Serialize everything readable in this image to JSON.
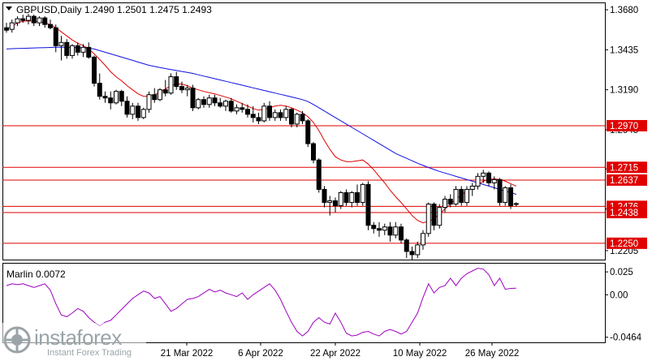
{
  "header": {
    "symbol_line": "GBPUSD,Daily  1.2490 1.2501 1.2475 1.2493"
  },
  "indicator": {
    "label": "Marlin 0.0072",
    "levels": [
      "0.025",
      "0.00",
      "-0.0464"
    ]
  },
  "watermark": {
    "brand": "instaforex",
    "tagline": "Instant Forex Trading"
  },
  "x_axis_labels": [
    "21 Mar 2022",
    "6 Apr 2022",
    "22 Apr 2022",
    "10 May 2022",
    "26 May 2022"
  ],
  "colors": {
    "bull": "#ffffff",
    "bear": "#000000",
    "ma_fast": "#e00000",
    "ma_slow": "#1010e0",
    "level_line": "#e00000",
    "oscillator": "#a000c0",
    "label_box": "#e00000"
  },
  "chart_data": [
    {
      "type": "candlestick",
      "title": "GBPUSD,Daily",
      "ohlc_last": {
        "open": 1.249,
        "high": 1.2501,
        "low": 1.2475,
        "close": 1.2493
      },
      "y_ticks": [
        "1.3680",
        "1.3435",
        "1.3190",
        "1.2945",
        "1.2705",
        "1.2460",
        "1.2205"
      ],
      "ylim": [
        1.215,
        1.372
      ],
      "levels": [
        {
          "value": 1.297,
          "label": "1.2970"
        },
        {
          "value": 1.2715,
          "label": "1.2715"
        },
        {
          "value": 1.2637,
          "label": "1.2637"
        },
        {
          "value": 1.2476,
          "label": "1.2476"
        },
        {
          "value": 1.2438,
          "label": "1.2438"
        },
        {
          "value": 1.225,
          "label": "1.2250"
        }
      ],
      "candles": [
        [
          1.357,
          1.36,
          1.354,
          1.3555
        ],
        [
          1.356,
          1.362,
          1.354,
          1.36
        ],
        [
          1.36,
          1.364,
          1.358,
          1.3625
        ],
        [
          1.3625,
          1.365,
          1.36,
          1.3615
        ],
        [
          1.3615,
          1.3655,
          1.359,
          1.364
        ],
        [
          1.364,
          1.365,
          1.358,
          1.36
        ],
        [
          1.36,
          1.364,
          1.358,
          1.363
        ],
        [
          1.363,
          1.364,
          1.357,
          1.359
        ],
        [
          1.359,
          1.362,
          1.356,
          1.357
        ],
        [
          1.357,
          1.359,
          1.342,
          1.346
        ],
        [
          1.346,
          1.352,
          1.337,
          1.348
        ],
        [
          1.348,
          1.35,
          1.338,
          1.34
        ],
        [
          1.34,
          1.347,
          1.338,
          1.346
        ],
        [
          1.346,
          1.348,
          1.34,
          1.342
        ],
        [
          1.342,
          1.347,
          1.339,
          1.345
        ],
        [
          1.345,
          1.348,
          1.338,
          1.339
        ],
        [
          1.339,
          1.34,
          1.321,
          1.323
        ],
        [
          1.323,
          1.329,
          1.313,
          1.315
        ],
        [
          1.315,
          1.318,
          1.311,
          1.314
        ],
        [
          1.314,
          1.318,
          1.307,
          1.311
        ],
        [
          1.311,
          1.319,
          1.31,
          1.318
        ],
        [
          1.318,
          1.319,
          1.309,
          1.312
        ],
        [
          1.312,
          1.315,
          1.302,
          1.304
        ],
        [
          1.304,
          1.311,
          1.301,
          1.309
        ],
        [
          1.309,
          1.311,
          1.3,
          1.302
        ],
        [
          1.302,
          1.308,
          1.301,
          1.307
        ],
        [
          1.307,
          1.318,
          1.305,
          1.316
        ],
        [
          1.316,
          1.32,
          1.311,
          1.313
        ],
        [
          1.313,
          1.32,
          1.312,
          1.319
        ],
        [
          1.319,
          1.325,
          1.315,
          1.317
        ],
        [
          1.317,
          1.329,
          1.316,
          1.327
        ],
        [
          1.327,
          1.33,
          1.319,
          1.321
        ],
        [
          1.321,
          1.324,
          1.317,
          1.319
        ],
        [
          1.319,
          1.322,
          1.315,
          1.32
        ],
        [
          1.32,
          1.322,
          1.306,
          1.308
        ],
        [
          1.308,
          1.314,
          1.307,
          1.313
        ],
        [
          1.313,
          1.315,
          1.308,
          1.31
        ],
        [
          1.31,
          1.316,
          1.308,
          1.314
        ],
        [
          1.314,
          1.316,
          1.309,
          1.311
        ],
        [
          1.311,
          1.314,
          1.308,
          1.309
        ],
        [
          1.309,
          1.313,
          1.306,
          1.312
        ],
        [
          1.312,
          1.314,
          1.305,
          1.306
        ],
        [
          1.306,
          1.31,
          1.304,
          1.308
        ],
        [
          1.308,
          1.311,
          1.305,
          1.307
        ],
        [
          1.307,
          1.31,
          1.302,
          1.304
        ],
        [
          1.304,
          1.309,
          1.299,
          1.302
        ],
        [
          1.302,
          1.305,
          1.298,
          1.3
        ],
        [
          1.3,
          1.311,
          1.299,
          1.309
        ],
        [
          1.309,
          1.312,
          1.3,
          1.302
        ],
        [
          1.302,
          1.307,
          1.3,
          1.305
        ],
        [
          1.305,
          1.307,
          1.3,
          1.302
        ],
        [
          1.302,
          1.309,
          1.3,
          1.307
        ],
        [
          1.307,
          1.308,
          1.296,
          1.298
        ],
        [
          1.298,
          1.305,
          1.296,
          1.304
        ],
        [
          1.304,
          1.306,
          1.298,
          1.3
        ],
        [
          1.3,
          1.301,
          1.284,
          1.286
        ],
        [
          1.286,
          1.287,
          1.274,
          1.276
        ],
        [
          1.276,
          1.277,
          1.256,
          1.258
        ],
        [
          1.258,
          1.26,
          1.247,
          1.25
        ],
        [
          1.25,
          1.254,
          1.242,
          1.251
        ],
        [
          1.251,
          1.253,
          1.244,
          1.248
        ],
        [
          1.248,
          1.257,
          1.246,
          1.256
        ],
        [
          1.256,
          1.258,
          1.248,
          1.25
        ],
        [
          1.25,
          1.257,
          1.247,
          1.256
        ],
        [
          1.256,
          1.261,
          1.248,
          1.25
        ],
        [
          1.25,
          1.262,
          1.248,
          1.261
        ],
        [
          1.261,
          1.263,
          1.233,
          1.236
        ],
        [
          1.236,
          1.238,
          1.231,
          1.234
        ],
        [
          1.234,
          1.238,
          1.229,
          1.233
        ],
        [
          1.233,
          1.237,
          1.23,
          1.235
        ],
        [
          1.235,
          1.238,
          1.226,
          1.23
        ],
        [
          1.23,
          1.238,
          1.228,
          1.235
        ],
        [
          1.235,
          1.237,
          1.225,
          1.227
        ],
        [
          1.227,
          1.228,
          1.216,
          1.22
        ],
        [
          1.22,
          1.223,
          1.215,
          1.218
        ],
        [
          1.218,
          1.226,
          1.216,
          1.224
        ],
        [
          1.224,
          1.233,
          1.221,
          1.231
        ],
        [
          1.231,
          1.25,
          1.229,
          1.249
        ],
        [
          1.249,
          1.25,
          1.233,
          1.236
        ],
        [
          1.236,
          1.249,
          1.234,
          1.247
        ],
        [
          1.247,
          1.254,
          1.244,
          1.252
        ],
        [
          1.252,
          1.255,
          1.247,
          1.249
        ],
        [
          1.249,
          1.26,
          1.248,
          1.258
        ],
        [
          1.258,
          1.26,
          1.248,
          1.25
        ],
        [
          1.25,
          1.26,
          1.248,
          1.258
        ],
        [
          1.258,
          1.262,
          1.254,
          1.26
        ],
        [
          1.26,
          1.268,
          1.258,
          1.266
        ],
        [
          1.266,
          1.27,
          1.262,
          1.268
        ],
        [
          1.268,
          1.269,
          1.26,
          1.262
        ],
        [
          1.262,
          1.266,
          1.258,
          1.264
        ],
        [
          1.264,
          1.265,
          1.248,
          1.25
        ],
        [
          1.25,
          1.26,
          1.248,
          1.259
        ],
        [
          1.259,
          1.261,
          1.246,
          1.248
        ],
        [
          1.249,
          1.2501,
          1.2475,
          1.2493
        ]
      ],
      "ma_fast": [
        1.356,
        1.358,
        1.36,
        1.361,
        1.3612,
        1.361,
        1.3605,
        1.36,
        1.359,
        1.357,
        1.3545,
        1.352,
        1.3495,
        1.3475,
        1.346,
        1.344,
        1.341,
        1.3375,
        1.334,
        1.33,
        1.327,
        1.3245,
        1.3215,
        1.319,
        1.3165,
        1.315,
        1.315,
        1.316,
        1.3175,
        1.3195,
        1.3215,
        1.3225,
        1.3225,
        1.3215,
        1.32,
        1.319,
        1.318,
        1.3172,
        1.3165,
        1.3155,
        1.3145,
        1.3135,
        1.312,
        1.3105,
        1.309,
        1.3075,
        1.3065,
        1.307,
        1.308,
        1.309,
        1.3095,
        1.309,
        1.308,
        1.3065,
        1.305,
        1.3025,
        1.299,
        1.294,
        1.288,
        1.2825,
        1.278,
        1.276,
        1.275,
        1.275,
        1.2755,
        1.276,
        1.2735,
        1.27,
        1.266,
        1.262,
        1.2575,
        1.2535,
        1.25,
        1.246,
        1.242,
        1.239,
        1.2375,
        1.2385,
        1.24,
        1.243,
        1.246,
        1.249,
        1.252,
        1.2545,
        1.257,
        1.259,
        1.261,
        1.263,
        1.264,
        1.2645,
        1.264,
        1.263,
        1.2615,
        1.26
      ],
      "ma_slow": [
        1.344,
        1.3442,
        1.3443,
        1.3444,
        1.3445,
        1.3446,
        1.3447,
        1.3448,
        1.3449,
        1.345,
        1.345,
        1.345,
        1.3449,
        1.3448,
        1.3447,
        1.3445,
        1.344,
        1.343,
        1.342,
        1.341,
        1.34,
        1.339,
        1.338,
        1.337,
        1.336,
        1.335,
        1.334,
        1.3333,
        1.3326,
        1.332,
        1.3314,
        1.3308,
        1.3302,
        1.3296,
        1.329,
        1.3282,
        1.3274,
        1.3266,
        1.3258,
        1.325,
        1.3242,
        1.3234,
        1.3226,
        1.3218,
        1.321,
        1.3202,
        1.3194,
        1.3186,
        1.3178,
        1.317,
        1.3162,
        1.3154,
        1.3146,
        1.3138,
        1.313,
        1.3118,
        1.31,
        1.308,
        1.306,
        1.304,
        1.302,
        1.3,
        1.298,
        1.296,
        1.294,
        1.292,
        1.29,
        1.288,
        1.286,
        1.284,
        1.282,
        1.28,
        1.2785,
        1.277,
        1.2755,
        1.274,
        1.2727,
        1.2714,
        1.2702,
        1.269,
        1.268,
        1.267,
        1.266,
        1.265,
        1.264,
        1.263,
        1.262,
        1.261,
        1.26,
        1.259,
        1.258,
        1.257,
        1.256,
        1.255
      ]
    },
    {
      "type": "line",
      "title": "Marlin 0.0072",
      "y_ticks": [
        "0.025",
        "0.00",
        "-0.0464"
      ],
      "ylim": [
        -0.052,
        0.034
      ],
      "values": [
        0.01,
        0.012,
        0.011,
        0.012,
        0.01,
        0.008,
        0.01,
        0.012,
        0.005,
        -0.01,
        -0.022,
        -0.024,
        -0.02,
        -0.015,
        -0.018,
        -0.025,
        -0.03,
        -0.034,
        -0.03,
        -0.028,
        -0.022,
        -0.016,
        -0.01,
        -0.004,
        0.0,
        0.004,
        0.002,
        -0.004,
        -0.002,
        -0.01,
        -0.018,
        -0.015,
        -0.01,
        -0.005,
        -0.004,
        -0.002,
        0.002,
        0.006,
        0.003,
        0.005,
        0.002,
        0.0,
        -0.002,
        0.002,
        -0.005,
        0.0,
        0.004,
        0.008,
        0.012,
        0.005,
        -0.005,
        -0.018,
        -0.03,
        -0.04,
        -0.045,
        -0.04,
        -0.03,
        -0.025,
        -0.03,
        -0.032,
        -0.02,
        -0.03,
        -0.042,
        -0.045,
        -0.044,
        -0.041,
        -0.04,
        -0.043,
        -0.045,
        -0.04,
        -0.038,
        -0.04,
        -0.043,
        -0.04,
        -0.03,
        -0.02,
        -0.003,
        0.012,
        0.002,
        0.008,
        0.01,
        0.018,
        0.01,
        0.018,
        0.023,
        0.026,
        0.029,
        0.028,
        0.022,
        0.01,
        0.018,
        0.006,
        0.007,
        0.0072
      ]
    }
  ]
}
